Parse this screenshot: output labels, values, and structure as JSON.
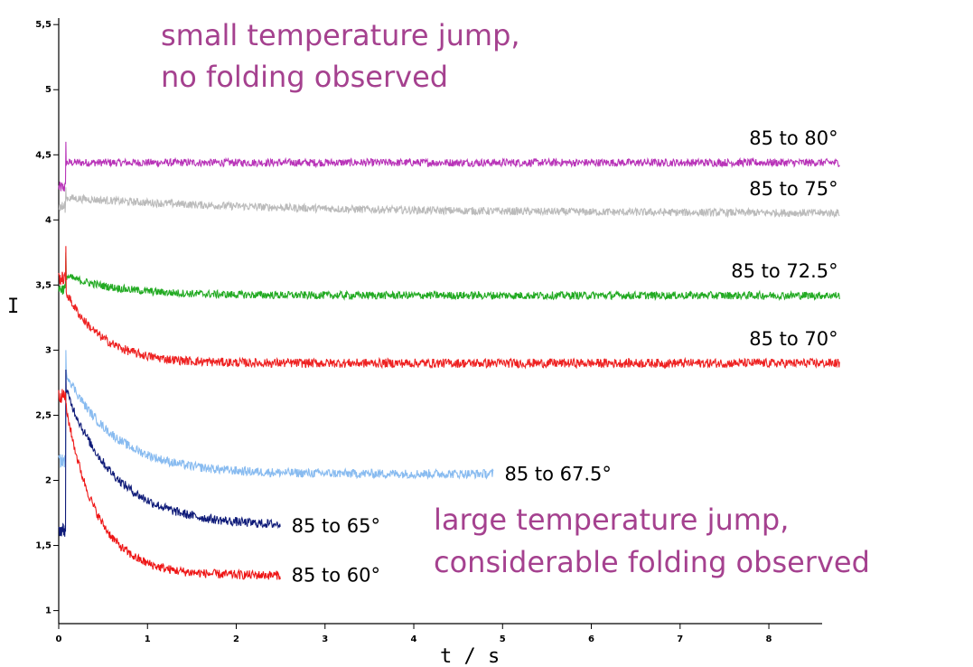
{
  "chart_data": {
    "type": "line",
    "xlabel": "t / s",
    "ylabel": "I",
    "xlim": [
      0,
      8.6
    ],
    "ylim": [
      0.9,
      5.55
    ],
    "xticks": [
      "0",
      "1",
      "2",
      "3",
      "4",
      "5",
      "6",
      "7",
      "8"
    ],
    "yticks": [
      "1",
      "1,5",
      "2",
      "2,5",
      "3",
      "3,5",
      "4",
      "4,5",
      "5",
      "5,5"
    ],
    "grid": false,
    "series": [
      {
        "name": "85 to 80°",
        "color": "#b833b8",
        "pre": 4.25,
        "peak": 4.6,
        "plateau": 4.44,
        "amp": 0.0,
        "tau": 0.3,
        "drift": 0.0,
        "noise": 0.03,
        "end": 8.8
      },
      {
        "name": "85 to 75°",
        "color": "#bbbbbb",
        "pre": 4.1,
        "peak": 4.25,
        "plateau": 4.05,
        "amp": 0.12,
        "tau": 2.5,
        "drift": 0.0,
        "noise": 0.03,
        "end": 8.8
      },
      {
        "name": "85 to 72.5°",
        "color": "#22aa22",
        "pre": 3.47,
        "peak": 3.75,
        "plateau": 3.42,
        "amp": 0.15,
        "tau": 0.6,
        "drift": 0.0,
        "noise": 0.03,
        "end": 8.8
      },
      {
        "name": "85 to 70°",
        "color": "#ee2222",
        "pre": 3.55,
        "peak": 3.8,
        "plateau": 2.9,
        "amp": 0.55,
        "tau": 0.4,
        "drift": 0.0,
        "noise": 0.035,
        "end": 8.8
      },
      {
        "name": "85 to 67.5°",
        "color": "#88bbf0",
        "pre": 2.15,
        "peak": 3.0,
        "plateau": 2.05,
        "amp": 0.78,
        "tau": 0.55,
        "drift": 0.0,
        "noise": 0.035,
        "end": 4.9
      },
      {
        "name": "85 to 65°",
        "color": "#0e1a78",
        "pre": 1.62,
        "peak": 2.85,
        "plateau": 1.65,
        "amp": 1.05,
        "tau": 0.55,
        "drift": 0.0,
        "noise": 0.035,
        "end": 2.5
      },
      {
        "name": "85 to 60°",
        "color": "#ee1515",
        "pre": 2.65,
        "peak": 2.6,
        "plateau": 1.27,
        "amp": 1.3,
        "tau": 0.35,
        "drift": 0.0,
        "noise": 0.035,
        "end": 2.5
      }
    ],
    "annotations": {
      "top_line1": "small temperature jump,",
      "top_line2": "no folding observed",
      "bottom_line1": "large temperature jump,",
      "bottom_line2": "considerable folding observed"
    }
  }
}
